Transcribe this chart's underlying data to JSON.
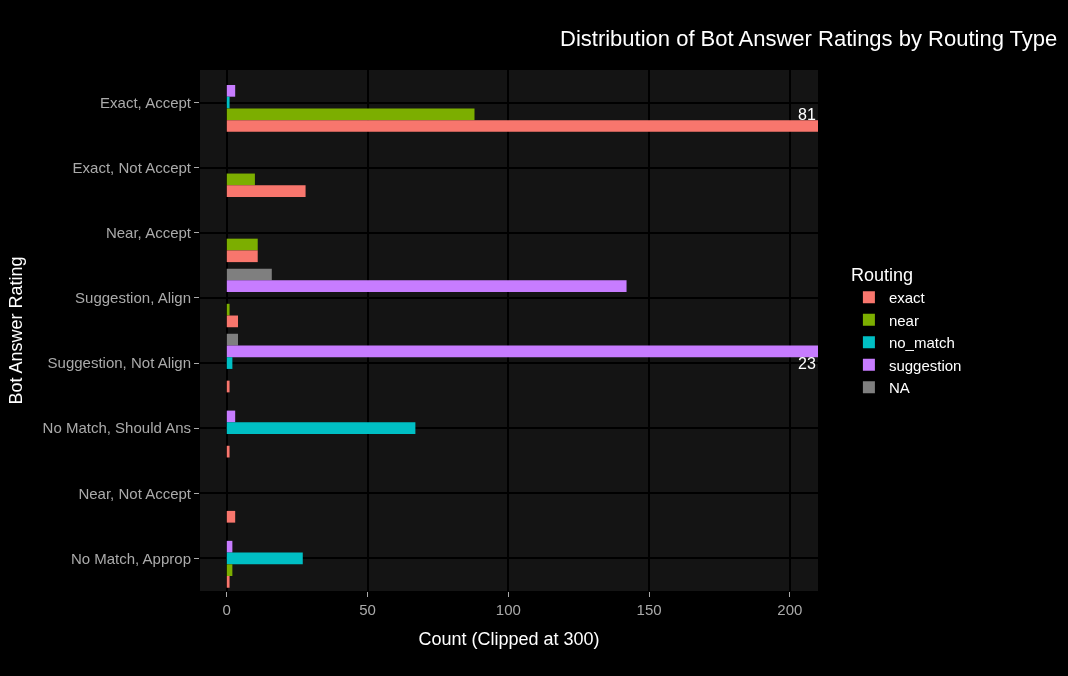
{
  "chart_data": {
    "type": "bar",
    "orientation": "horizontal",
    "title": "Distribution of Bot Answer Ratings by Routing Type",
    "xlabel": "Count (Clipped at 300)",
    "ylabel": "Bot Answer Rating",
    "legend_title": "Routing",
    "categories": [
      "Exact, Accept",
      "Exact, Not Accept",
      "Near, Accept",
      "Suggestion, Align",
      "Suggestion, Not Align",
      "No Match, Should Ans",
      "Near, Not Accept",
      "No Match, Approp"
    ],
    "series": [
      {
        "name": "exact",
        "color": "#f8766d",
        "values": [
          210,
          28,
          11,
          4,
          1,
          1,
          3,
          1
        ]
      },
      {
        "name": "near",
        "color": "#7cae00",
        "values": [
          88,
          10,
          11,
          1,
          null,
          null,
          null,
          2
        ]
      },
      {
        "name": "no_match",
        "color": "#00bfc4",
        "values": [
          1,
          null,
          null,
          null,
          2,
          67,
          null,
          27
        ]
      },
      {
        "name": "suggestion",
        "color": "#c77cff",
        "values": [
          3,
          null,
          null,
          142,
          210,
          3,
          null,
          2
        ]
      },
      {
        "name": "NA",
        "color": "#7f7f7f",
        "values": [
          null,
          null,
          null,
          16,
          4,
          null,
          null,
          null
        ]
      }
    ],
    "annotations": [
      "81",
      "23"
    ],
    "xlim": [
      -9.5,
      210
    ],
    "xticks": [
      0,
      50,
      100,
      150,
      200
    ],
    "grid": true,
    "legend": "right"
  }
}
